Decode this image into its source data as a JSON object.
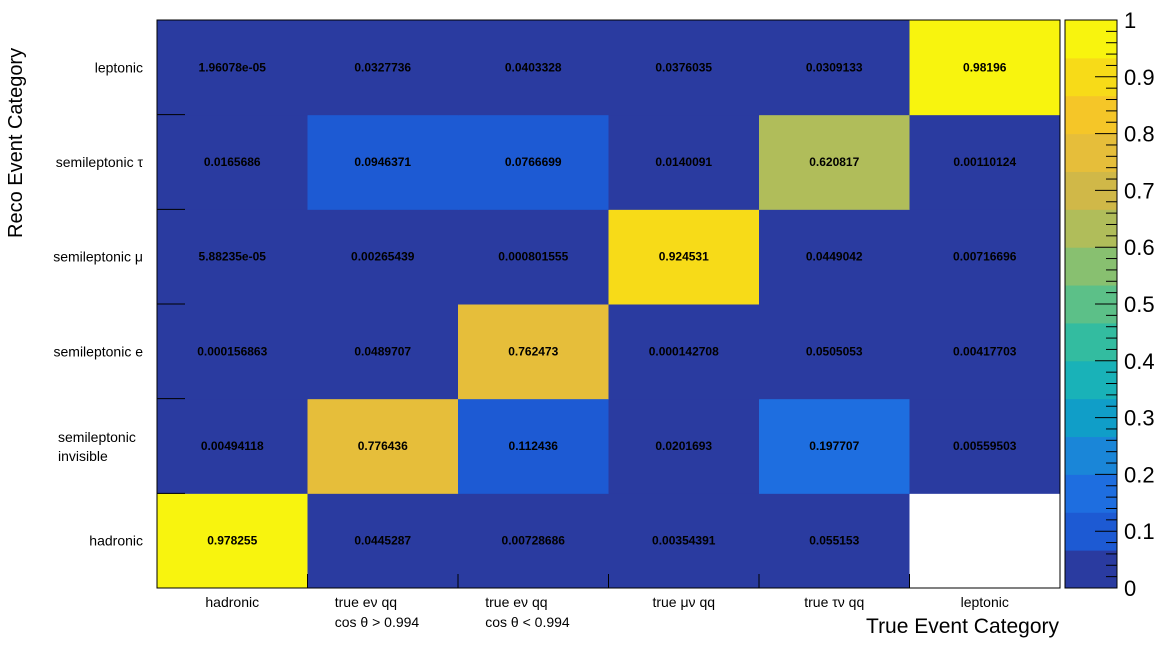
{
  "chart_data": {
    "type": "heatmap",
    "xlabel": "True Event Category",
    "ylabel": "Reco Event Category",
    "x_categories": [
      [
        "hadronic"
      ],
      [
        "true eν qq",
        "cos θ > 0.994"
      ],
      [
        "true eν qq",
        "cos θ < 0.994"
      ],
      [
        "true μν qq"
      ],
      [
        "true τν qq"
      ],
      [
        "leptonic"
      ]
    ],
    "y_categories": [
      [
        "hadronic"
      ],
      [
        "semileptonic",
        "invisible"
      ],
      [
        "semileptonic e"
      ],
      [
        "semileptonic μ"
      ],
      [
        "semileptonic τ"
      ],
      [
        "leptonic"
      ]
    ],
    "values": [
      [
        0.978255,
        0.0445287,
        0.00728686,
        0.00354391,
        0.055153,
        null
      ],
      [
        0.00494118,
        0.776436,
        0.112436,
        0.0201693,
        0.197707,
        0.00559503
      ],
      [
        0.000156863,
        0.0489707,
        0.762473,
        0.000142708,
        0.0505053,
        0.00417703
      ],
      [
        5.88235e-05,
        0.00265439,
        0.000801555,
        0.924531,
        0.0449042,
        0.00716696
      ],
      [
        0.0165686,
        0.0946371,
        0.0766699,
        0.0140091,
        0.620817,
        0.00110124
      ],
      [
        1.96078e-05,
        0.0327736,
        0.0403328,
        0.0376035,
        0.0309133,
        0.98196
      ]
    ],
    "labels": [
      [
        "0.978255",
        "0.0445287",
        "0.00728686",
        "0.00354391",
        "0.055153",
        ""
      ],
      [
        "0.00494118",
        "0.776436",
        "0.112436",
        "0.0201693",
        "0.197707",
        "0.00559503"
      ],
      [
        "0.000156863",
        "0.0489707",
        "0.762473",
        "0.000142708",
        "0.0505053",
        "0.00417703"
      ],
      [
        "5.88235e-05",
        "0.00265439",
        "0.000801555",
        "0.924531",
        "0.0449042",
        "0.00716696"
      ],
      [
        "0.0165686",
        "0.0946371",
        "0.0766699",
        "0.0140091",
        "0.620817",
        "0.00110124"
      ],
      [
        "1.96078e-05",
        "0.0327736",
        "0.0403328",
        "0.0376035",
        "0.0309133",
        "0.98196"
      ]
    ],
    "zlim": [
      0,
      1
    ],
    "z_ticks": [
      "0",
      "0.1",
      "0.2",
      "0.3",
      "0.4",
      "0.5",
      "0.6",
      "0.7",
      "0.8",
      "0.9",
      "1"
    ],
    "palette": [
      "#2a3ba0",
      "#1d5ad3",
      "#1e6ee0",
      "#1a86d8",
      "#109ec8",
      "#19b2b8",
      "#33bca0",
      "#5cc088",
      "#88c070",
      "#b0bd5a",
      "#d0b848",
      "#e6be3a",
      "#f5c628",
      "#f7db18",
      "#f8f40e"
    ],
    "empty_color": "#ffffff",
    "grid": false
  }
}
